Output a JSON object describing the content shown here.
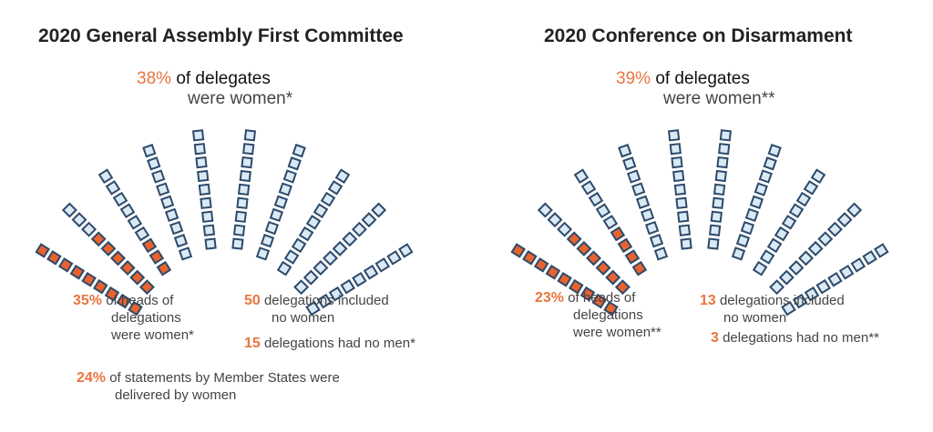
{
  "chart_data": [
    {
      "type": "seat-diagram",
      "title": "2020 General Assembly First Committee",
      "headline_value": "38%",
      "headline_text_1": "of delegates",
      "headline_text_2": "were women*",
      "women_delegates_pct": 38,
      "rows_orange": [
        9,
        6,
        3,
        0,
        0,
        0,
        0,
        0,
        0,
        0
      ],
      "stats": [
        {
          "value": "35%",
          "lines": [
            "of heads of",
            "delegations",
            "were women*"
          ]
        },
        {
          "value": "50",
          "lines": [
            "delegations included",
            "no women"
          ]
        },
        {
          "value": "15",
          "lines": [
            "delegations had no men*"
          ]
        },
        {
          "value": "24%",
          "lines": [
            "of statements by Member States were",
            "delivered by women"
          ]
        }
      ]
    },
    {
      "type": "seat-diagram",
      "title": "2020 Conference on Disarmament",
      "headline_value": "39%",
      "headline_text_1": "of delegates",
      "headline_text_2": "were women**",
      "women_delegates_pct": 39,
      "rows_orange": [
        9,
        6,
        4,
        0,
        0,
        0,
        0,
        0,
        0,
        0
      ],
      "stats": [
        {
          "value": "23%",
          "lines": [
            "of heads of",
            "delegations",
            "were women**"
          ]
        },
        {
          "value": "13",
          "lines": [
            "delegations included",
            "no women"
          ]
        },
        {
          "value": "3",
          "lines": [
            "delegations had no men**"
          ]
        }
      ]
    }
  ],
  "colors": {
    "accent": "#e8763f",
    "seat_dark": "#2c4a6b",
    "seat_light_fill": "#dbe9f4",
    "seat_orange_fill": "#e8632e"
  }
}
